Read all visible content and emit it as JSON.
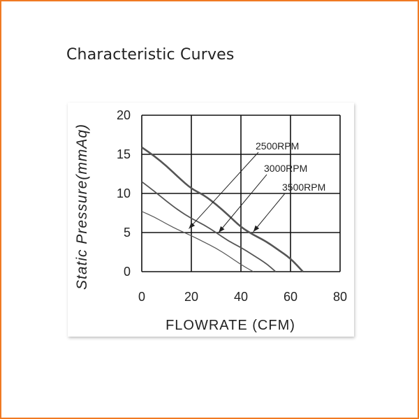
{
  "page": {
    "title": "Characteristic Curves",
    "frame_color": "#f07a23"
  },
  "chart_data": {
    "type": "line",
    "title": "Characteristic Curves",
    "xlabel": "FLOWRATE (CFM)",
    "ylabel": "Static  Pressure(mmAq)",
    "xlim": [
      0,
      80
    ],
    "ylim": [
      0,
      20
    ],
    "xticks": [
      0,
      20,
      40,
      60,
      80
    ],
    "yticks": [
      0,
      5,
      10,
      15,
      20
    ],
    "grid": true,
    "series": [
      {
        "name": "2500RPM",
        "x": [
          0,
          5,
          10,
          15,
          20,
          25,
          30,
          35,
          40,
          45
        ],
        "y": [
          7.7,
          7.0,
          6.1,
          5.3,
          4.6,
          3.8,
          3.0,
          2.0,
          0.9,
          0.0
        ]
      },
      {
        "name": "3000RPM",
        "x": [
          0,
          5,
          10,
          15,
          20,
          25,
          30,
          35,
          40,
          45,
          50,
          54
        ],
        "y": [
          11.5,
          10.3,
          9.0,
          7.8,
          6.8,
          6.0,
          5.0,
          3.9,
          3.1,
          2.1,
          1.1,
          0.0
        ]
      },
      {
        "name": "3500RPM",
        "x": [
          0,
          5,
          10,
          15,
          20,
          25,
          30,
          35,
          40,
          45,
          50,
          55,
          60,
          65
        ],
        "y": [
          15.9,
          14.8,
          13.5,
          12.0,
          10.6,
          9.8,
          8.6,
          7.2,
          5.7,
          4.7,
          3.9,
          2.8,
          1.7,
          0.0
        ]
      }
    ],
    "annotations": [
      {
        "text": "2500RPM",
        "tip": [
          19,
          5.5
        ]
      },
      {
        "text": "3000RPM",
        "tip": [
          31,
          5.0
        ]
      },
      {
        "text": "3500RPM",
        "tip": [
          45,
          5.1
        ]
      }
    ]
  }
}
